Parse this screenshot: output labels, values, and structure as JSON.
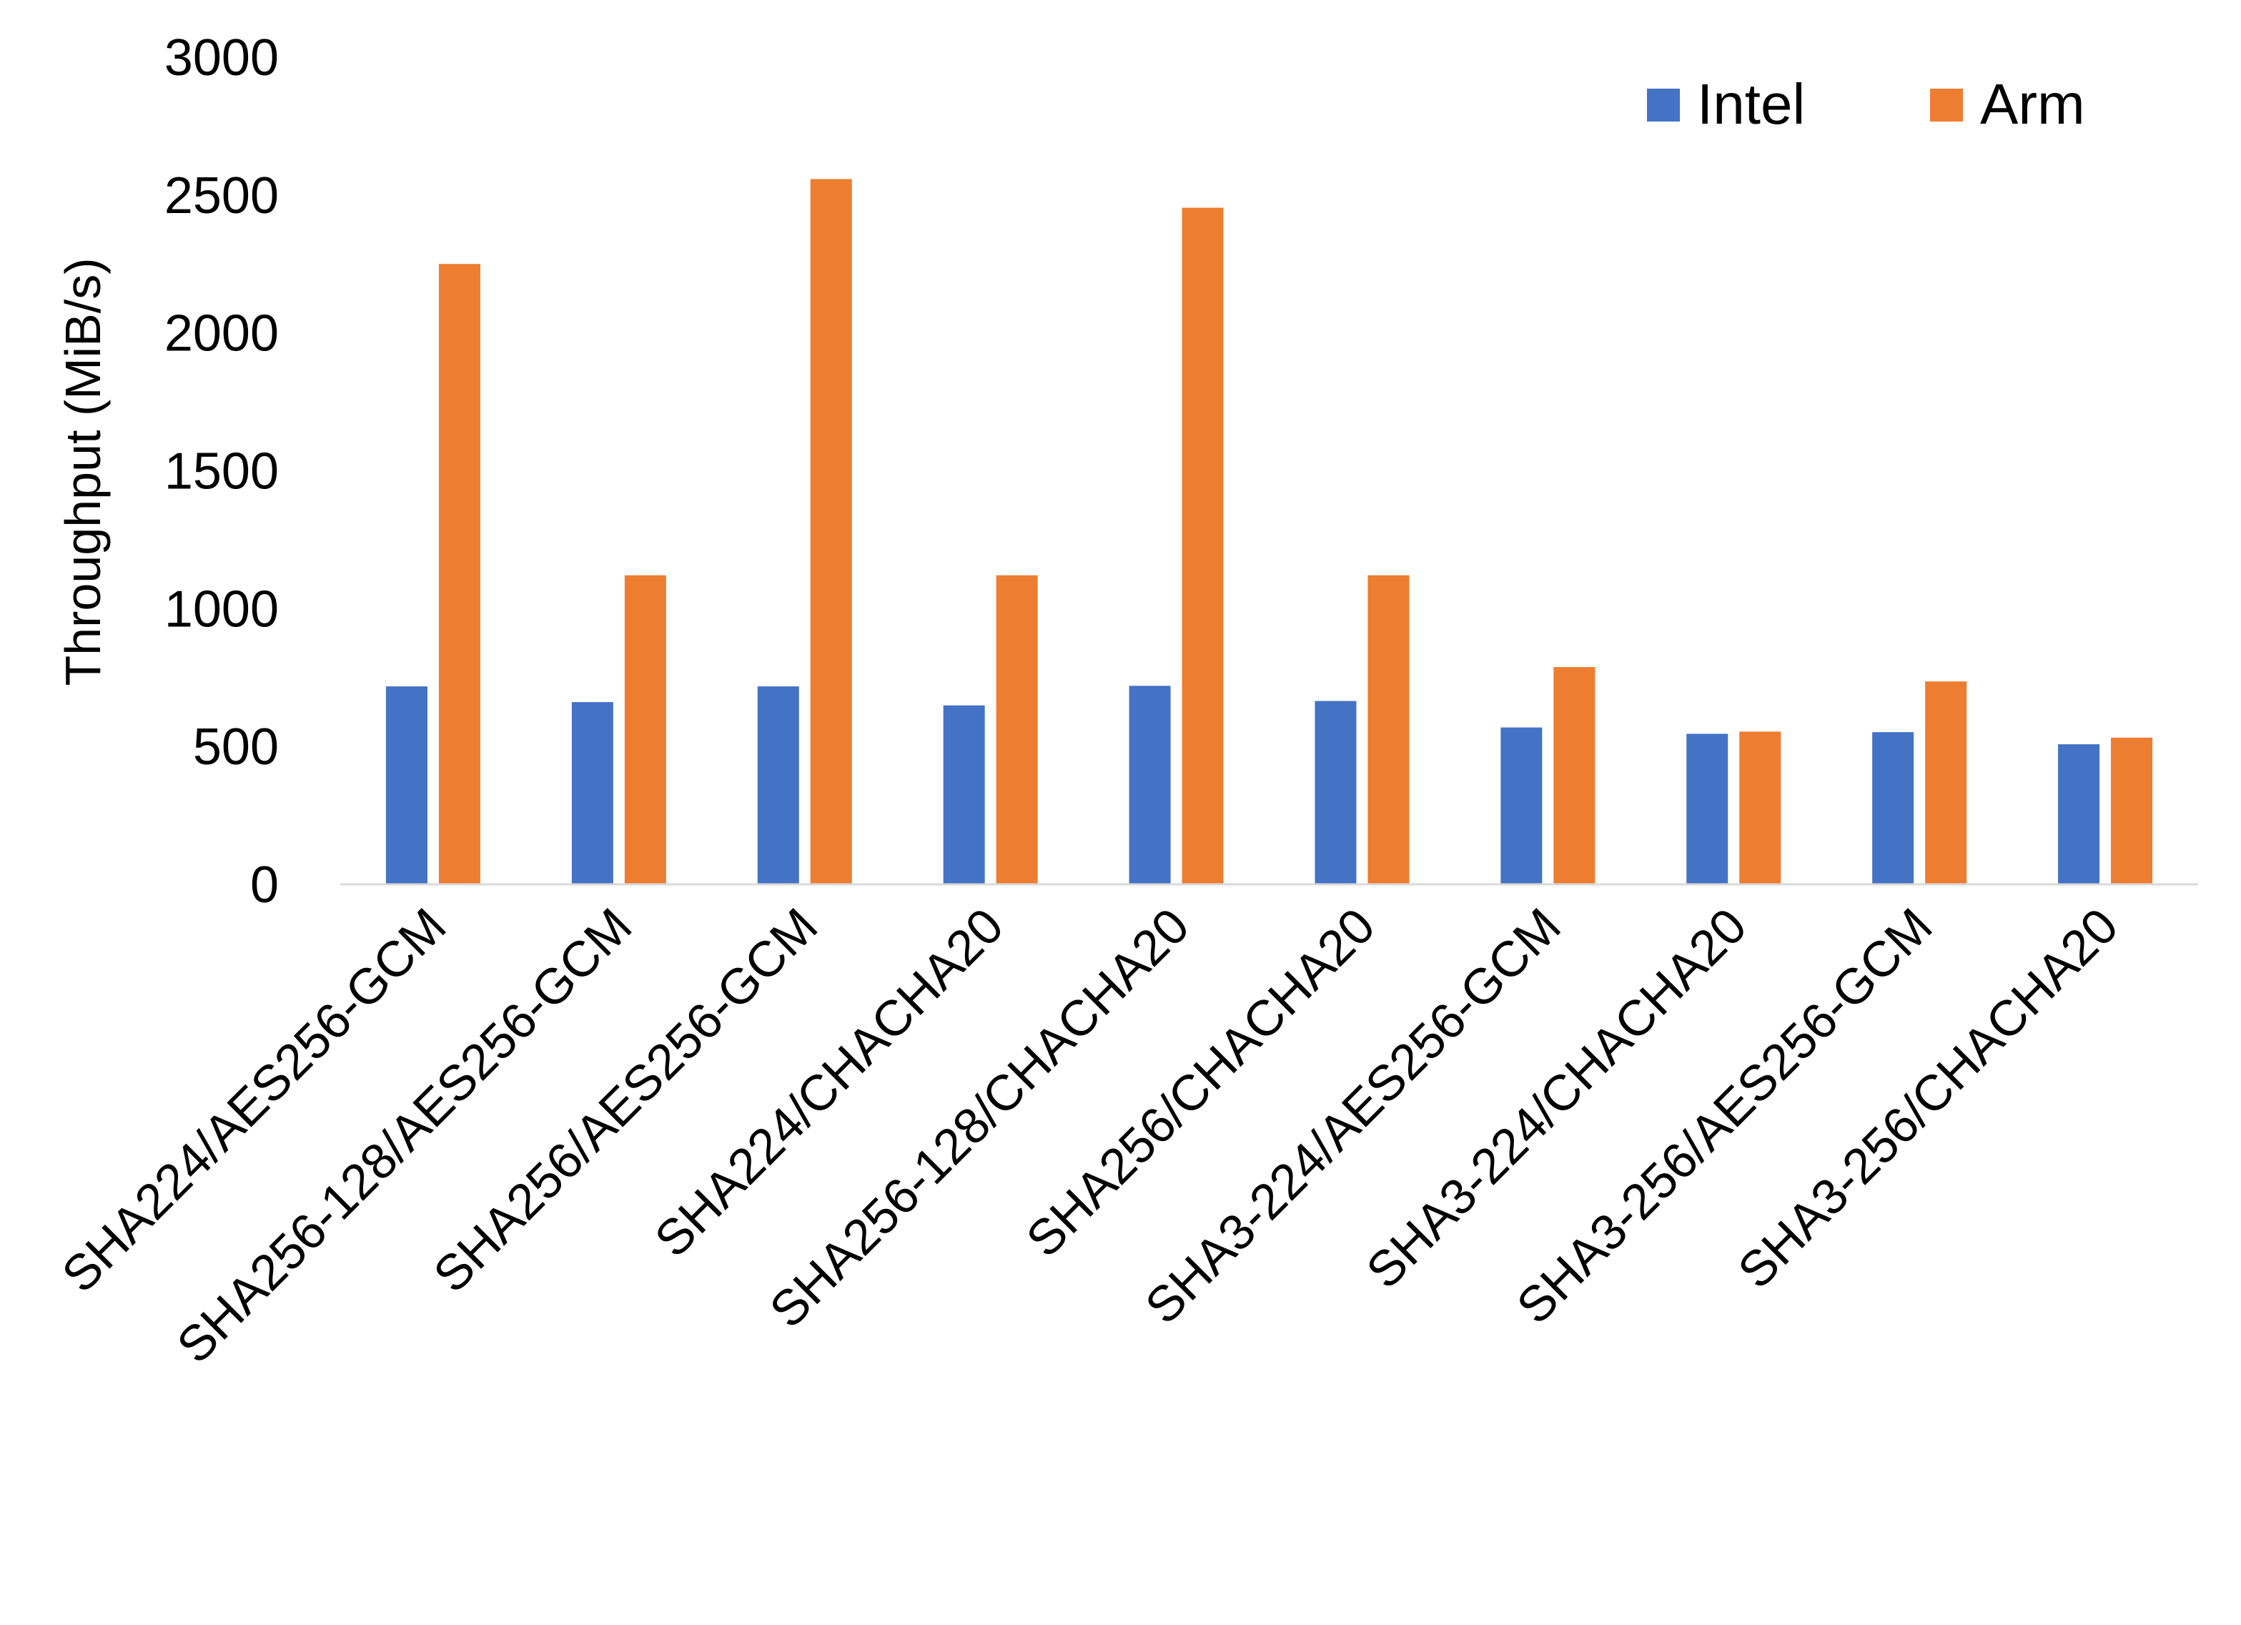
{
  "chart_data": {
    "type": "bar",
    "title": "",
    "xlabel": "",
    "ylabel": "Throughput (MiB/s)",
    "ylim": [
      0,
      3000
    ],
    "yticks": [
      "0",
      "500",
      "1000",
      "1500",
      "2000",
      "2500",
      "3000"
    ],
    "grid": false,
    "legend_position": "top-right",
    "categories": [
      "SHA224/AES256-GCM",
      "SHA256-128/AES256-GCM",
      "SHA256/AES256-GCM",
      "SHA224/CHACHA20",
      "SHA256-128/CHACHA20",
      "SHA256/CHACHA20",
      "SHA3-224/AES256-GCM",
      "SHA3-224/CHACHA20",
      "SHA3-256/AES256-GCM",
      "SHA3-256/CHACHA20"
    ],
    "series": [
      {
        "name": "Intel",
        "color": "#4472C4",
        "values": [
          718,
          661,
          718,
          649,
          720,
          665,
          569,
          546,
          552,
          508
        ]
      },
      {
        "name": "Arm",
        "color": "#ED7D31",
        "values": [
          2250,
          1121,
          2558,
          1121,
          2454,
          1121,
          788,
          554,
          736,
          532
        ]
      }
    ]
  }
}
